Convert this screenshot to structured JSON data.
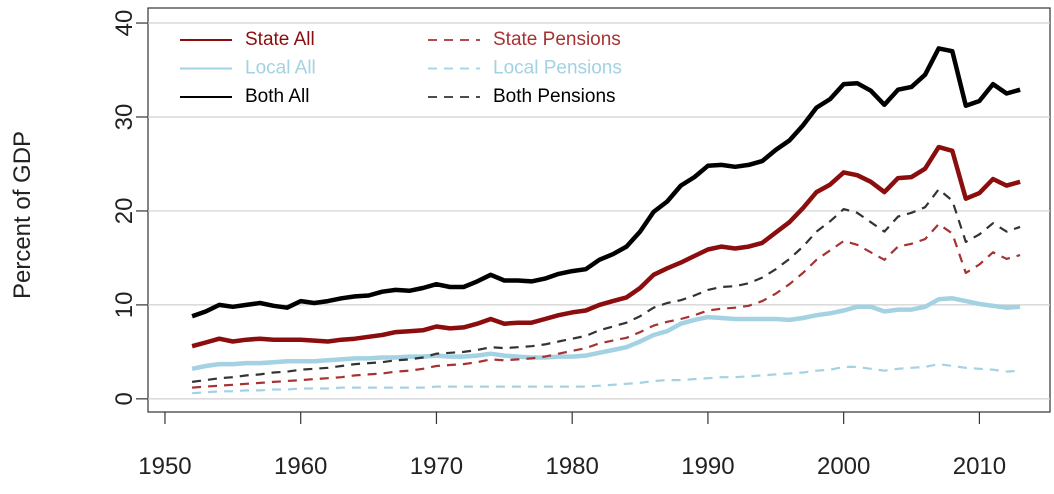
{
  "chart_data": {
    "type": "line",
    "ylabel": "Percent of GDP",
    "x": [
      1952,
      1953,
      1954,
      1955,
      1956,
      1957,
      1958,
      1959,
      1960,
      1961,
      1962,
      1963,
      1964,
      1965,
      1966,
      1967,
      1968,
      1969,
      1970,
      1971,
      1972,
      1973,
      1974,
      1975,
      1976,
      1977,
      1978,
      1979,
      1980,
      1981,
      1982,
      1983,
      1984,
      1985,
      1986,
      1987,
      1988,
      1989,
      1990,
      1991,
      1992,
      1993,
      1994,
      1995,
      1996,
      1997,
      1998,
      1999,
      2000,
      2001,
      2002,
      2003,
      2004,
      2005,
      2006,
      2007,
      2008,
      2009,
      2010,
      2011,
      2012,
      2013
    ],
    "xlim": [
      1948.75,
      2015.2
    ],
    "xticks": [
      1950,
      1960,
      1970,
      1980,
      1990,
      2000,
      2010
    ],
    "ylim": [
      -1.4,
      41.6
    ],
    "yticks": [
      0,
      10,
      20,
      30,
      40
    ],
    "grid": true,
    "legend": "top-left",
    "series": [
      {
        "name": "State All",
        "color": "#8b0d0d",
        "line_style": "solid",
        "values": [
          5.6,
          6.0,
          6.4,
          6.1,
          6.3,
          6.4,
          6.3,
          6.3,
          6.3,
          6.2,
          6.1,
          6.3,
          6.4,
          6.6,
          6.8,
          7.1,
          7.2,
          7.3,
          7.7,
          7.5,
          7.6,
          8.0,
          8.5,
          8.0,
          8.1,
          8.1,
          8.5,
          8.9,
          9.2,
          9.4,
          10.0,
          10.4,
          10.8,
          11.8,
          13.2,
          13.9,
          14.5,
          15.2,
          15.9,
          16.2,
          16.0,
          16.2,
          16.6,
          17.7,
          18.8,
          20.3,
          22.0,
          22.8,
          24.1,
          23.8,
          23.1,
          22.0,
          23.5,
          23.6,
          24.5,
          26.8,
          26.4,
          21.3,
          21.9,
          23.4,
          22.7,
          23.1
        ]
      },
      {
        "name": "Local All",
        "color": "#a3d2e3",
        "line_style": "solid",
        "values": [
          3.2,
          3.5,
          3.7,
          3.7,
          3.8,
          3.8,
          3.9,
          4.0,
          4.0,
          4.0,
          4.1,
          4.2,
          4.3,
          4.3,
          4.4,
          4.4,
          4.5,
          4.5,
          4.6,
          4.5,
          4.5,
          4.6,
          4.8,
          4.6,
          4.5,
          4.4,
          4.4,
          4.5,
          4.5,
          4.6,
          4.9,
          5.2,
          5.5,
          6.1,
          6.8,
          7.2,
          8.0,
          8.4,
          8.7,
          8.6,
          8.5,
          8.5,
          8.5,
          8.5,
          8.4,
          8.6,
          8.9,
          9.1,
          9.4,
          9.8,
          9.8,
          9.3,
          9.5,
          9.5,
          9.8,
          10.6,
          10.7,
          10.4,
          10.1,
          9.9,
          9.7,
          9.8
        ]
      },
      {
        "name": "Both All",
        "color": "#000000",
        "line_style": "solid",
        "values": [
          8.8,
          9.3,
          10.0,
          9.8,
          10.0,
          10.2,
          9.9,
          9.7,
          10.4,
          10.2,
          10.4,
          10.7,
          10.9,
          11.0,
          11.4,
          11.6,
          11.5,
          11.8,
          12.2,
          11.9,
          11.9,
          12.5,
          13.2,
          12.6,
          12.6,
          12.5,
          12.8,
          13.3,
          13.6,
          13.8,
          14.8,
          15.4,
          16.2,
          17.8,
          19.9,
          21.0,
          22.7,
          23.6,
          24.8,
          24.9,
          24.7,
          24.9,
          25.3,
          26.5,
          27.5,
          29.1,
          31.0,
          31.9,
          33.5,
          33.6,
          32.8,
          31.3,
          32.9,
          33.2,
          34.5,
          37.3,
          37.0,
          31.2,
          31.7,
          33.5,
          32.5,
          32.9
        ]
      },
      {
        "name": "State Pensions",
        "color": "#a83232",
        "line_style": "dashed",
        "values": [
          1.2,
          1.3,
          1.4,
          1.5,
          1.6,
          1.7,
          1.8,
          1.9,
          2.0,
          2.1,
          2.2,
          2.3,
          2.5,
          2.6,
          2.7,
          2.9,
          3.0,
          3.2,
          3.5,
          3.6,
          3.7,
          3.9,
          4.2,
          4.1,
          4.2,
          4.3,
          4.5,
          4.8,
          5.1,
          5.4,
          5.9,
          6.2,
          6.5,
          7.1,
          7.8,
          8.2,
          8.5,
          8.9,
          9.4,
          9.6,
          9.7,
          9.9,
          10.4,
          11.2,
          12.2,
          13.4,
          14.8,
          15.8,
          16.8,
          16.4,
          15.6,
          14.8,
          16.2,
          16.5,
          17.0,
          18.6,
          17.6,
          13.4,
          14.3,
          15.6,
          14.9,
          15.3
        ]
      },
      {
        "name": "Local Pensions",
        "color": "#a3d2e3",
        "line_style": "dashed",
        "values": [
          0.6,
          0.7,
          0.8,
          0.8,
          0.9,
          0.9,
          1.0,
          1.0,
          1.1,
          1.1,
          1.1,
          1.2,
          1.2,
          1.2,
          1.2,
          1.2,
          1.2,
          1.2,
          1.3,
          1.3,
          1.3,
          1.3,
          1.3,
          1.3,
          1.3,
          1.3,
          1.3,
          1.3,
          1.3,
          1.3,
          1.4,
          1.5,
          1.6,
          1.7,
          1.9,
          2.0,
          2.0,
          2.1,
          2.2,
          2.3,
          2.3,
          2.4,
          2.5,
          2.6,
          2.7,
          2.8,
          3.0,
          3.1,
          3.4,
          3.4,
          3.2,
          3.0,
          3.2,
          3.3,
          3.4,
          3.7,
          3.5,
          3.3,
          3.2,
          3.1,
          2.9,
          3.0
        ]
      },
      {
        "name": "Both Pensions",
        "color": "#333333",
        "line_style": "dashed",
        "values": [
          1.8,
          2.0,
          2.2,
          2.3,
          2.5,
          2.6,
          2.8,
          2.9,
          3.1,
          3.2,
          3.3,
          3.5,
          3.7,
          3.8,
          3.9,
          4.1,
          4.2,
          4.4,
          4.8,
          4.9,
          5.0,
          5.2,
          5.5,
          5.4,
          5.5,
          5.6,
          5.8,
          6.1,
          6.4,
          6.7,
          7.3,
          7.7,
          8.1,
          8.8,
          9.7,
          10.2,
          10.5,
          11.0,
          11.6,
          11.9,
          12.0,
          12.3,
          12.9,
          13.8,
          14.9,
          16.2,
          17.8,
          18.9,
          20.2,
          19.8,
          18.8,
          17.8,
          19.4,
          19.8,
          20.4,
          22.3,
          21.1,
          16.7,
          17.5,
          18.7,
          17.8,
          18.3
        ]
      }
    ]
  }
}
